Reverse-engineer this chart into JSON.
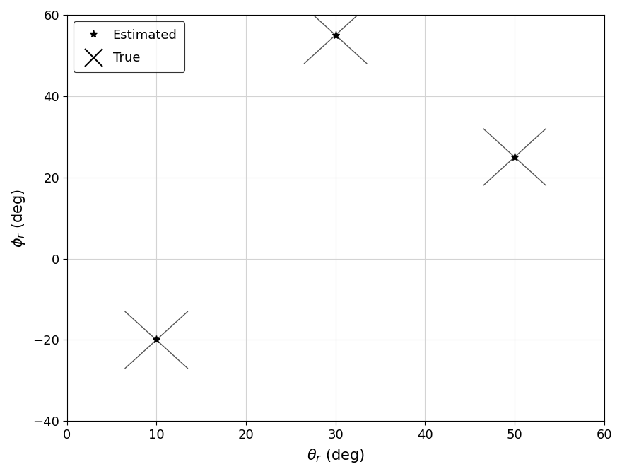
{
  "xlabel": "$\\theta_r$ (deg)",
  "ylabel": "$\\phi_r$ (deg)",
  "xlim": [
    0,
    60
  ],
  "ylim": [
    -40,
    60
  ],
  "xticks": [
    0,
    10,
    20,
    30,
    40,
    50,
    60
  ],
  "yticks": [
    -40,
    -20,
    0,
    20,
    40,
    60
  ],
  "estimated_points": [
    [
      10,
      -20
    ],
    [
      30,
      55
    ],
    [
      50,
      25
    ]
  ],
  "true_points": [
    [
      10,
      -20
    ],
    [
      30,
      55
    ],
    [
      50,
      25
    ]
  ],
  "color": "#000000",
  "cross_color": "#555555",
  "cross_arm_x": 3.5,
  "cross_arm_y": 7,
  "cross_linewidth": 1.0,
  "star_markersize": 8,
  "background_color": "#ffffff",
  "grid_color": "#d3d3d3",
  "fontsize_label": 15,
  "fontsize_tick": 13,
  "fontsize_legend": 13
}
